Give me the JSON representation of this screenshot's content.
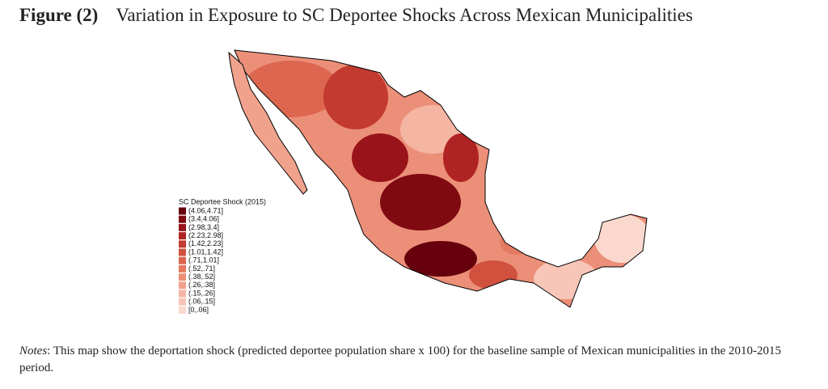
{
  "figure": {
    "label": "Figure (2)",
    "title": "Variation in Exposure to SC Deportee Shocks Across Mexican Municipalities"
  },
  "legend": {
    "title": "SC Deportee Shock (2015)",
    "items": [
      {
        "label": "(4.06,4.71]",
        "color": "#67000d"
      },
      {
        "label": "(3.4,4.06]",
        "color": "#7f0a12"
      },
      {
        "label": "(2.98,3.4]",
        "color": "#99141a"
      },
      {
        "label": "(2.23,2.98]",
        "color": "#b02323"
      },
      {
        "label": "(1.42,2.23]",
        "color": "#c23a30"
      },
      {
        "label": "(1.01,1.42]",
        "color": "#d1513f"
      },
      {
        "label": "(.71,1.01]",
        "color": "#dc6650"
      },
      {
        "label": "(.52,.71]",
        "color": "#e57a62"
      },
      {
        "label": "(.38,.52]",
        "color": "#ec8f78"
      },
      {
        "label": "(.26,.38]",
        "color": "#f1a28d"
      },
      {
        "label": "(.15,.26]",
        "color": "#f5b5a3"
      },
      {
        "label": "(.06,.15]",
        "color": "#f8c6b8"
      },
      {
        "label": "[0,.06]",
        "color": "#fbd8cd"
      }
    ]
  },
  "notes": {
    "label": "Notes",
    "text": ": This map show the deportation shock (predicted deportee population share x 100) for the baseline sample of Mexican municipalities in the 2010-2015 period."
  }
}
